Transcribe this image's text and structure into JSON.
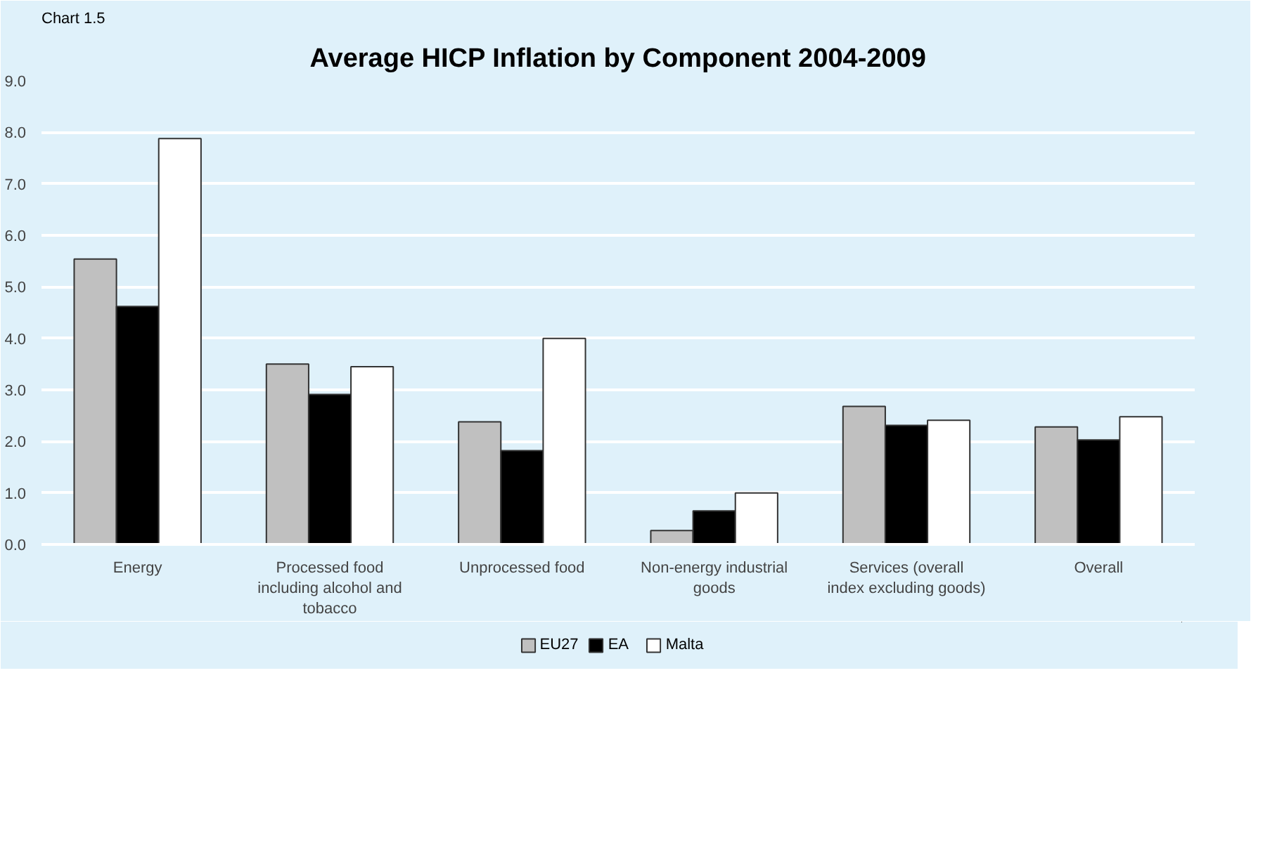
{
  "chart_data": {
    "type": "bar",
    "title": "Average HICP Inflation by Component 2004-2009",
    "annotations": [
      "Chart 1.5"
    ],
    "categories": [
      "Energy",
      "Processed food including alcohol and tobacco",
      "Unprocessed food",
      "Non-energy industrial goods",
      "Services (overall index excluding goods)",
      "Overall"
    ],
    "series": [
      {
        "name": "EU27",
        "color": "#c0c0c0",
        "values": [
          5.54,
          3.5,
          2.38,
          0.27,
          2.68,
          2.28
        ]
      },
      {
        "name": "EA",
        "color": "#000000",
        "values": [
          4.62,
          2.91,
          1.82,
          0.65,
          2.31,
          2.03
        ]
      },
      {
        "name": "Malta",
        "color": "#ffffff",
        "values": [
          7.88,
          3.45,
          4.0,
          1.0,
          2.41,
          2.48
        ]
      }
    ],
    "ylim": [
      0,
      9
    ],
    "yticks": [
      {
        "value": 0,
        "label": "0.0"
      },
      {
        "value": 1,
        "label": "1.0"
      },
      {
        "value": 2,
        "label": "2.0"
      },
      {
        "value": 3,
        "label": "3.0"
      },
      {
        "value": 4,
        "label": "4.0"
      },
      {
        "value": 5,
        "label": "5.0"
      },
      {
        "value": 6,
        "label": "6.0"
      },
      {
        "value": 7,
        "label": "7.0"
      },
      {
        "value": 8,
        "label": "8.0"
      },
      {
        "value": 9,
        "label": "9.0"
      }
    ],
    "grid": "y",
    "legend": "bottom"
  }
}
